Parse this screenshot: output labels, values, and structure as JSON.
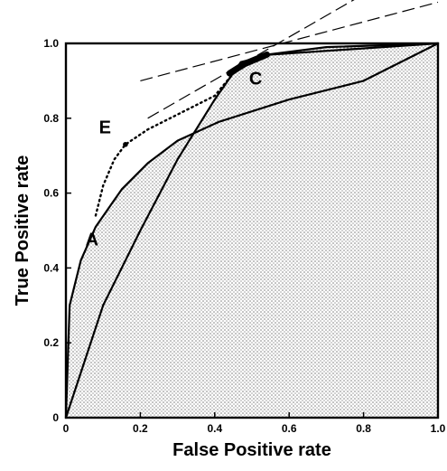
{
  "chart_data": {
    "type": "line",
    "xlabel": "False Positive rate",
    "ylabel": "True Positive rate",
    "xlim": [
      0,
      1
    ],
    "ylim": [
      0,
      1
    ],
    "x_ticks": [
      "0",
      "0.2",
      "0.4",
      "0.6",
      "0.8",
      "1.0"
    ],
    "y_ticks": [
      "0",
      "0.2",
      "0.4",
      "0.6",
      "0.8",
      "1.0"
    ],
    "grid": false,
    "legend": "none",
    "shaded_region": "under convex hull, dotted texture",
    "series": [
      {
        "key": "curve-a",
        "style": "solid",
        "x": [
          0,
          0.01,
          0.04,
          0.08,
          0.15,
          0.22,
          0.3,
          0.41,
          0.6,
          0.8,
          1.0
        ],
        "y": [
          0,
          0.3,
          0.42,
          0.51,
          0.61,
          0.68,
          0.74,
          0.79,
          0.85,
          0.9,
          1.0
        ]
      },
      {
        "key": "curve-b",
        "style": "solid",
        "x": [
          0,
          0.1,
          0.2,
          0.3,
          0.4,
          0.47,
          0.55,
          1.0
        ],
        "y": [
          0,
          0.3,
          0.5,
          0.69,
          0.85,
          0.95,
          0.97,
          1.0
        ]
      },
      {
        "key": "curve-e",
        "style": "dotted",
        "x": [
          0.08,
          0.1,
          0.13,
          0.16,
          0.22,
          0.3,
          0.4,
          0.45
        ],
        "y": [
          0.54,
          0.62,
          0.69,
          0.73,
          0.77,
          0.81,
          0.86,
          0.92
        ]
      },
      {
        "key": "hull-top",
        "style": "solid",
        "x": [
          0.54,
          0.7,
          1.0
        ],
        "y": [
          0.97,
          0.99,
          1.0
        ]
      },
      {
        "key": "segment-c",
        "style": "thick",
        "x": [
          0.44,
          0.48,
          0.54
        ],
        "y": [
          0.92,
          0.945,
          0.97
        ]
      }
    ],
    "iso_lines": [
      {
        "x": [
          0.2,
          1.0
        ],
        "y": [
          0.9,
          1.11
        ]
      },
      {
        "x": [
          0.22,
          0.78
        ],
        "y": [
          0.8,
          1.12
        ]
      }
    ],
    "points": [
      {
        "x": 0.16,
        "y": 0.73
      }
    ],
    "annotations": [
      {
        "text": "A",
        "x": 0.07,
        "y": 0.46
      },
      {
        "text": "C",
        "x": 0.51,
        "y": 0.89
      },
      {
        "text": "E",
        "x": 0.105,
        "y": 0.76
      }
    ]
  }
}
